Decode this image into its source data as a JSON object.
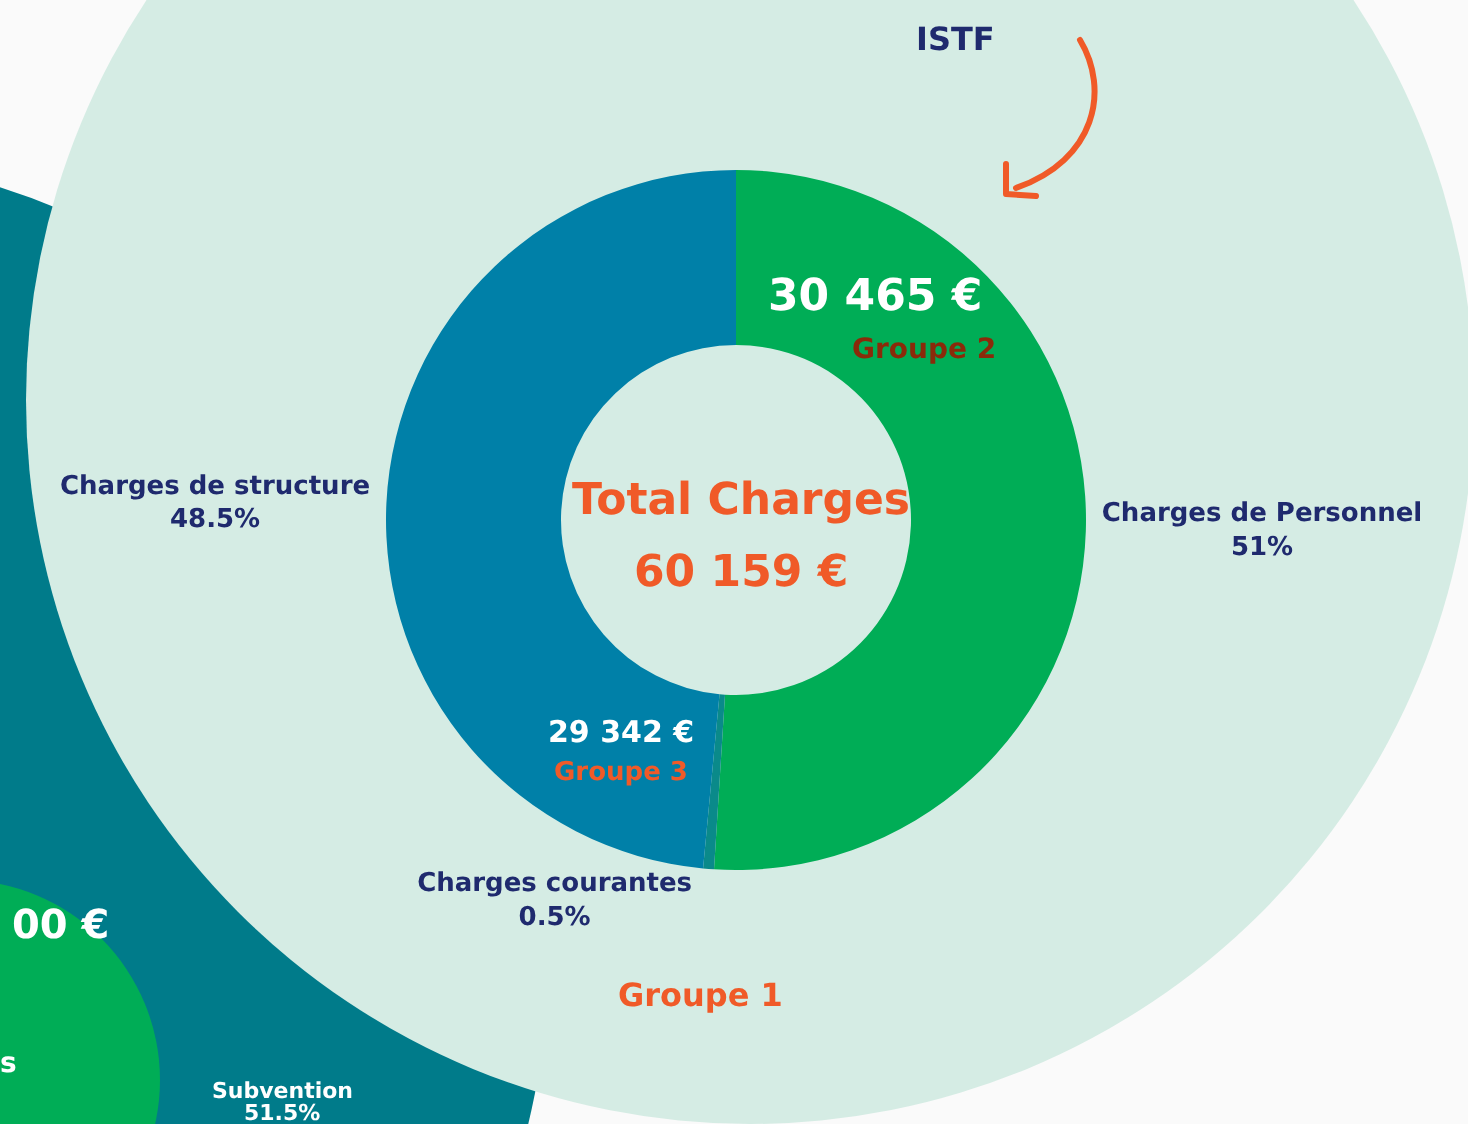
{
  "chart_data": {
    "type": "donut",
    "title": "Total Charges",
    "subtitle": "60 159 €",
    "categories": [
      "Charges de Personnel",
      "Charges courantes",
      "Charges de structure"
    ],
    "values": [
      51,
      0.5,
      48.5
    ],
    "value_labels": [
      "51%",
      "0.5%",
      "48.5%"
    ],
    "colors": [
      "#00ad56",
      "#0a8a8a",
      "#0080a8"
    ],
    "annotations": [
      "ISTF",
      "30 465 €",
      "Groupe 2",
      "29 342 €",
      "Groupe 3",
      "Groupe 1",
      "00 €",
      "s",
      "Subvention",
      "51.5%"
    ]
  }
}
